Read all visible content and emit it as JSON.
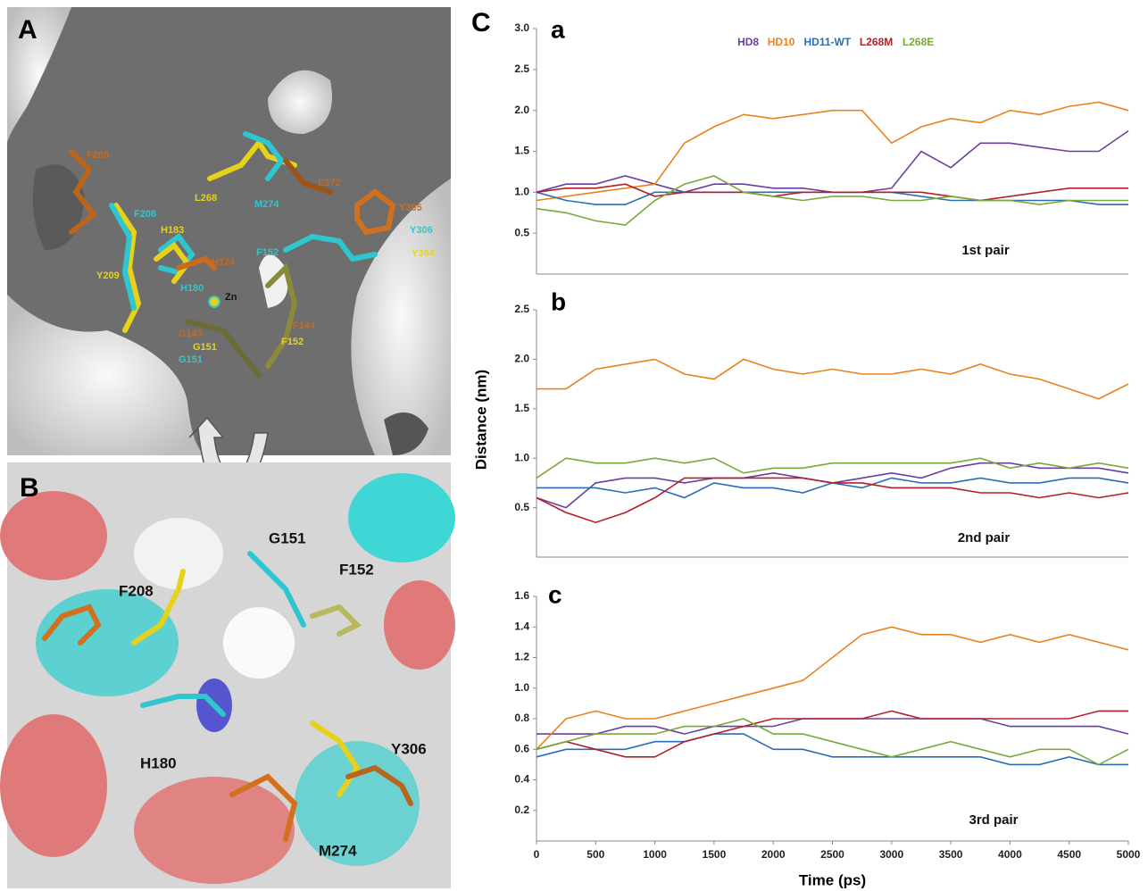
{
  "figure": {
    "panel_labels": [
      "A",
      "B",
      "C"
    ],
    "panel_a": {
      "labels": [
        "F205",
        "F208",
        "H183",
        "H174",
        "Y209",
        "H180",
        "Zn",
        "G143",
        "G151",
        "G151",
        "F152",
        "F144",
        "F152",
        "L268",
        "M274",
        "E272",
        "Y305",
        "Y306",
        "Y304"
      ]
    },
    "panel_b": {
      "labels": [
        "G151",
        "F152",
        "F208",
        "H180",
        "Y306",
        "M274"
      ]
    }
  },
  "chart_data": [
    {
      "type": "line",
      "title": "a",
      "annotation": "1st pair",
      "legend": "top",
      "x": [
        0,
        250,
        500,
        750,
        1000,
        1250,
        1500,
        1750,
        2000,
        2250,
        2500,
        2750,
        3000,
        3250,
        3500,
        3750,
        4000,
        4250,
        4500,
        4750,
        5000
      ],
      "xlim": [
        0,
        5000
      ],
      "ylim": [
        0,
        3
      ],
      "yticks": [
        0.5,
        {
          "value": 1,
          "label": "1.0"
        },
        1.5,
        {
          "value": 2,
          "label": "2.0"
        },
        2.5,
        {
          "value": 3,
          "label": "3.0"
        }
      ],
      "series": [
        {
          "name": "HD8",
          "color": "#6b3fa0",
          "values": [
            1.0,
            1.1,
            1.1,
            1.2,
            1.1,
            1.0,
            1.1,
            1.1,
            1.05,
            1.05,
            1.0,
            1.0,
            1.05,
            1.5,
            1.3,
            1.6,
            1.6,
            1.55,
            1.5,
            1.5,
            1.75
          ]
        },
        {
          "name": "HD10",
          "color": "#e8821e",
          "values": [
            0.9,
            0.95,
            1.0,
            1.05,
            1.1,
            1.6,
            1.8,
            1.95,
            1.9,
            1.95,
            2.0,
            2.0,
            1.6,
            1.8,
            1.9,
            1.85,
            2.0,
            1.95,
            2.05,
            2.1,
            2.0
          ]
        },
        {
          "name": "HD11-WT",
          "color": "#2a6db5",
          "values": [
            1.0,
            0.9,
            0.85,
            0.85,
            1.0,
            1.0,
            1.0,
            1.0,
            1.0,
            1.0,
            1.0,
            1.0,
            1.0,
            0.95,
            0.9,
            0.9,
            0.9,
            0.9,
            0.9,
            0.85,
            0.85
          ]
        },
        {
          "name": "L268M",
          "color": "#b22028",
          "values": [
            1.0,
            1.05,
            1.05,
            1.1,
            0.95,
            1.0,
            1.0,
            1.0,
            0.95,
            1.0,
            1.0,
            1.0,
            1.0,
            1.0,
            0.95,
            0.9,
            0.95,
            1.0,
            1.05,
            1.05,
            1.05
          ]
        },
        {
          "name": "L268E",
          "color": "#7aa83a",
          "values": [
            0.8,
            0.75,
            0.65,
            0.6,
            0.9,
            1.1,
            1.2,
            1.0,
            0.95,
            0.9,
            0.95,
            0.95,
            0.9,
            0.9,
            0.95,
            0.9,
            0.9,
            0.85,
            0.9,
            0.9,
            0.9
          ]
        }
      ]
    },
    {
      "type": "line",
      "title": "b",
      "annotation": "2nd pair",
      "y_label": "Distance (nm)",
      "x": [
        0,
        250,
        500,
        750,
        1000,
        1250,
        1500,
        1750,
        2000,
        2250,
        2500,
        2750,
        3000,
        3250,
        3500,
        3750,
        4000,
        4250,
        4500,
        4750,
        5000
      ],
      "xlim": [
        0,
        5000
      ],
      "ylim": [
        0,
        2.5
      ],
      "yticks": [
        0.5,
        {
          "value": 1,
          "label": "1.0"
        },
        1.5,
        {
          "value": 2,
          "label": "2.0"
        },
        2.5
      ],
      "series": [
        {
          "color": "#6b3fa0",
          "values": [
            0.6,
            0.5,
            0.75,
            0.8,
            0.8,
            0.75,
            0.8,
            0.8,
            0.85,
            0.8,
            0.75,
            0.8,
            0.85,
            0.8,
            0.9,
            0.95,
            0.95,
            0.9,
            0.9,
            0.9,
            0.85
          ]
        },
        {
          "color": "#e8821e",
          "values": [
            1.7,
            1.7,
            1.9,
            1.95,
            2.0,
            1.85,
            1.8,
            2.0,
            1.9,
            1.85,
            1.9,
            1.85,
            1.85,
            1.9,
            1.85,
            1.95,
            1.85,
            1.8,
            1.7,
            1.6,
            1.75
          ]
        },
        {
          "color": "#2a6db5",
          "values": [
            0.7,
            0.7,
            0.7,
            0.65,
            0.7,
            0.6,
            0.75,
            0.7,
            0.7,
            0.65,
            0.75,
            0.7,
            0.8,
            0.75,
            0.75,
            0.8,
            0.75,
            0.75,
            0.8,
            0.8,
            0.75
          ]
        },
        {
          "color": "#b22028",
          "values": [
            0.6,
            0.45,
            0.35,
            0.45,
            0.6,
            0.8,
            0.8,
            0.8,
            0.8,
            0.8,
            0.75,
            0.75,
            0.7,
            0.7,
            0.7,
            0.65,
            0.65,
            0.6,
            0.65,
            0.6,
            0.65
          ]
        },
        {
          "color": "#7aa83a",
          "values": [
            0.8,
            1.0,
            0.95,
            0.95,
            1.0,
            0.95,
            1.0,
            0.85,
            0.9,
            0.9,
            0.95,
            0.95,
            0.95,
            0.95,
            0.95,
            1.0,
            0.9,
            0.95,
            0.9,
            0.95,
            0.9
          ]
        }
      ]
    },
    {
      "type": "line",
      "title": "c",
      "annotation": "3rd pair",
      "x_label": "Time (ps)",
      "x": [
        0,
        250,
        500,
        750,
        1000,
        1250,
        1500,
        1750,
        2000,
        2250,
        2500,
        2750,
        3000,
        3250,
        3500,
        3750,
        4000,
        4250,
        4500,
        4750,
        5000
      ],
      "xlim": [
        0,
        5000
      ],
      "ylim": [
        0,
        1.6
      ],
      "xticks": [
        0,
        500,
        1000,
        1500,
        2000,
        2500,
        3000,
        3500,
        4000,
        4500,
        5000
      ],
      "yticks": [
        0.2,
        0.4,
        0.6,
        0.8,
        {
          "value": 1,
          "label": "1.0"
        },
        1.2,
        1.4,
        1.6
      ],
      "series": [
        {
          "color": "#6b3fa0",
          "values": [
            0.7,
            0.7,
            0.7,
            0.75,
            0.75,
            0.7,
            0.75,
            0.75,
            0.75,
            0.8,
            0.8,
            0.8,
            0.8,
            0.8,
            0.8,
            0.8,
            0.75,
            0.75,
            0.75,
            0.75,
            0.7
          ]
        },
        {
          "color": "#e8821e",
          "values": [
            0.6,
            0.8,
            0.85,
            0.8,
            0.8,
            0.85,
            0.9,
            0.95,
            1.0,
            1.05,
            1.2,
            1.35,
            1.4,
            1.35,
            1.35,
            1.3,
            1.35,
            1.3,
            1.35,
            1.3,
            1.25
          ]
        },
        {
          "color": "#2a6db5",
          "values": [
            0.55,
            0.6,
            0.6,
            0.6,
            0.65,
            0.65,
            0.7,
            0.7,
            0.6,
            0.6,
            0.55,
            0.55,
            0.55,
            0.55,
            0.55,
            0.55,
            0.5,
            0.5,
            0.55,
            0.5,
            0.5
          ]
        },
        {
          "color": "#b22028",
          "values": [
            0.6,
            0.65,
            0.6,
            0.55,
            0.55,
            0.65,
            0.7,
            0.75,
            0.8,
            0.8,
            0.8,
            0.8,
            0.85,
            0.8,
            0.8,
            0.8,
            0.8,
            0.8,
            0.8,
            0.85,
            0.85
          ]
        },
        {
          "color": "#7aa83a",
          "values": [
            0.6,
            0.65,
            0.7,
            0.7,
            0.7,
            0.75,
            0.75,
            0.8,
            0.7,
            0.7,
            0.65,
            0.6,
            0.55,
            0.6,
            0.65,
            0.6,
            0.55,
            0.6,
            0.6,
            0.5,
            0.6
          ]
        }
      ]
    }
  ]
}
